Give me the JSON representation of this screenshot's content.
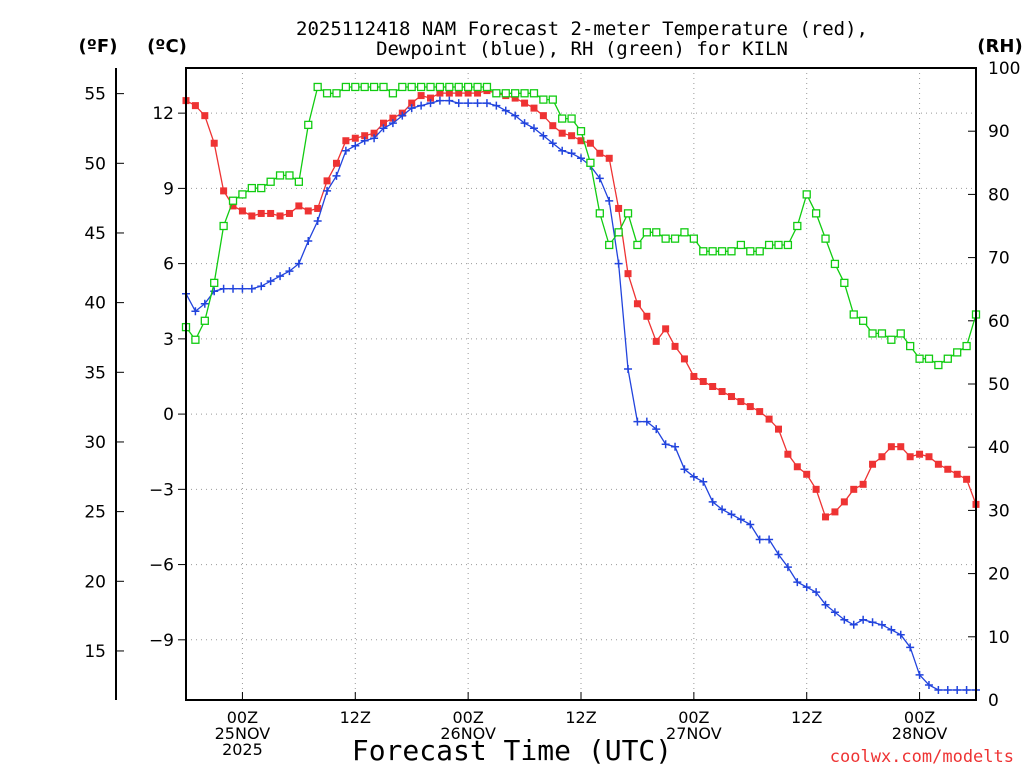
{
  "chart_data": {
    "type": "line",
    "title_line1": "2025112418 NAM Forecast 2-meter Temperature (red),",
    "title_line2": "Dewpoint (blue), RH (green) for KILN",
    "xlabel": "Forecast Time (UTC)",
    "watermark": "coolwx.com/modelts",
    "axis_f_label": "(ºF)",
    "axis_c_label": "(ºC)",
    "axis_rh_label": "(RH)",
    "f_ticks": [
      "15",
      "20",
      "25",
      "30",
      "35",
      "40",
      "45",
      "50",
      "55"
    ],
    "c_ticks": [
      "-9",
      "-6",
      "-3",
      "0",
      "3",
      "6",
      "9",
      "12"
    ],
    "rh_ticks": [
      "0",
      "10",
      "20",
      "30",
      "40",
      "50",
      "60",
      "70",
      "80",
      "90",
      "100"
    ],
    "x_tick_labels": [
      {
        "hour": 6,
        "line1": "00Z",
        "line2": "25NOV",
        "line3": "2025"
      },
      {
        "hour": 18,
        "line1": "12Z",
        "line2": "",
        "line3": ""
      },
      {
        "hour": 30,
        "line1": "00Z",
        "line2": "26NOV",
        "line3": ""
      },
      {
        "hour": 42,
        "line1": "12Z",
        "line2": "",
        "line3": ""
      },
      {
        "hour": 54,
        "line1": "00Z",
        "line2": "27NOV",
        "line3": ""
      },
      {
        "hour": 66,
        "line1": "12Z",
        "line2": "",
        "line3": ""
      },
      {
        "hour": 78,
        "line1": "00Z",
        "line2": "28NOV",
        "line3": ""
      }
    ],
    "x_range_hours": [
      0,
      84
    ],
    "c_range": [
      -11.4,
      13.8
    ],
    "rh_range": [
      0,
      100
    ],
    "colors": {
      "temp": "#ee3333",
      "dewpoint": "#2244dd",
      "rh": "#11cc11",
      "grid": "#999999"
    },
    "series": [
      {
        "name": "Temperature (°C)",
        "axis": "c",
        "marker": "filled-square",
        "values": [
          12.5,
          12.3,
          11.9,
          10.8,
          8.9,
          8.3,
          8.1,
          7.9,
          8.0,
          8.0,
          7.9,
          8.0,
          8.3,
          8.1,
          8.2,
          9.3,
          10.0,
          10.9,
          11.0,
          11.1,
          11.2,
          11.6,
          11.8,
          12.0,
          12.4,
          12.7,
          12.6,
          12.8,
          12.8,
          12.8,
          12.8,
          12.8,
          12.9,
          12.8,
          12.7,
          12.6,
          12.4,
          12.2,
          11.9,
          11.5,
          11.2,
          11.1,
          10.9,
          10.8,
          10.4,
          10.2,
          8.2,
          5.6,
          4.4,
          3.9,
          2.9,
          3.4,
          2.7,
          2.2,
          1.5,
          1.3,
          1.1,
          0.9,
          0.7,
          0.5,
          0.3,
          0.1,
          -0.2,
          -0.6,
          -1.6,
          -2.1,
          -2.4,
          -3.0,
          -4.1,
          -3.9,
          -3.5,
          -3.0,
          -2.8,
          -2.0,
          -1.7,
          -1.3,
          -1.3,
          -1.7,
          -1.6,
          -1.7,
          -2.0,
          -2.2,
          -2.4,
          -2.6,
          -3.6
        ]
      },
      {
        "name": "Dewpoint (°C)",
        "axis": "c",
        "marker": "plus",
        "values": [
          4.8,
          4.1,
          4.4,
          4.9,
          5.0,
          5.0,
          5.0,
          5.0,
          5.1,
          5.3,
          5.5,
          5.7,
          6.0,
          6.9,
          7.7,
          8.9,
          9.5,
          10.5,
          10.7,
          10.9,
          11.0,
          11.4,
          11.6,
          11.9,
          12.2,
          12.3,
          12.4,
          12.5,
          12.5,
          12.4,
          12.4,
          12.4,
          12.4,
          12.3,
          12.1,
          11.9,
          11.6,
          11.4,
          11.1,
          10.8,
          10.5,
          10.4,
          10.2,
          9.9,
          9.4,
          8.5,
          6.0,
          1.8,
          -0.3,
          -0.3,
          -0.6,
          -1.2,
          -1.3,
          -2.2,
          -2.5,
          -2.7,
          -3.5,
          -3.8,
          -4.0,
          -4.2,
          -4.4,
          -5.0,
          -5.0,
          -5.6,
          -6.1,
          -6.7,
          -6.9,
          -7.1,
          -7.6,
          -7.9,
          -8.2,
          -8.4,
          -8.2,
          -8.3,
          -8.4,
          -8.6,
          -8.8,
          -9.3,
          -10.4,
          -10.8,
          -11.0,
          -11.0,
          -11.0,
          -11.0,
          -11.0
        ]
      },
      {
        "name": "RH (%)",
        "axis": "rh",
        "marker": "open-square",
        "values": [
          59,
          57,
          60,
          66,
          75,
          79,
          80,
          81,
          81,
          82,
          83,
          83,
          82,
          91,
          97,
          96,
          96,
          97,
          97,
          97,
          97,
          97,
          96,
          97,
          97,
          97,
          97,
          97,
          97,
          97,
          97,
          97,
          97,
          96,
          96,
          96,
          96,
          96,
          95,
          95,
          92,
          92,
          90,
          85,
          77,
          72,
          74,
          77,
          72,
          74,
          74,
          73,
          73,
          74,
          73,
          71,
          71,
          71,
          71,
          72,
          71,
          71,
          72,
          72,
          72,
          75,
          80,
          77,
          73,
          69,
          66,
          61,
          60,
          58,
          58,
          57,
          58,
          56,
          54,
          54,
          53,
          54,
          55,
          56,
          61
        ]
      }
    ]
  }
}
